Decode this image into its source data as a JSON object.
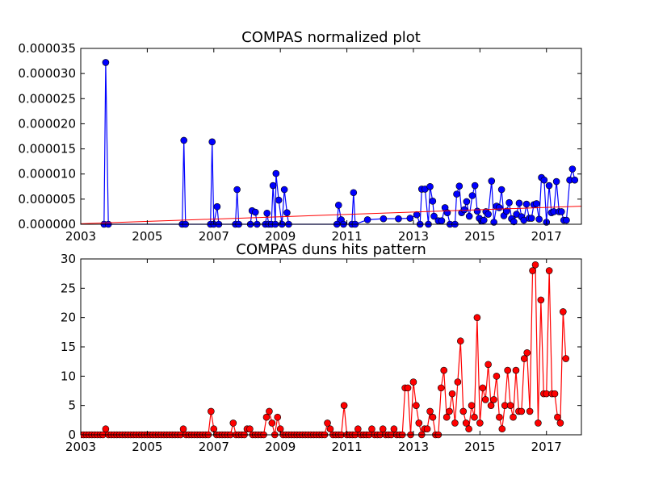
{
  "chart_data": [
    {
      "type": "line",
      "title": "COMPAS normalized plot",
      "xlabel": "",
      "ylabel": "",
      "xlim": [
        2003.0,
        2018.05
      ],
      "ylim": [
        0,
        3.5e-05
      ],
      "xticks": [
        2003,
        2005,
        2007,
        2009,
        2011,
        2013,
        2015,
        2017
      ],
      "yticks": [
        "0.000000",
        "0.000005",
        "0.000010",
        "0.000015",
        "0.000020",
        "0.000025",
        "0.000030",
        "0.000035"
      ],
      "grid": false,
      "legend": "none",
      "series": [
        {
          "color": "#0000ff",
          "marker": "circle",
          "points": [
            [
              2003.7,
              0
            ],
            [
              2003.75,
              3.22e-05
            ],
            [
              2003.83,
              0
            ],
            [
              2006.05,
              0
            ],
            [
              2006.1,
              1.67e-05
            ],
            [
              2006.15,
              0
            ],
            [
              2006.9,
              0
            ],
            [
              2006.95,
              1.64e-05
            ],
            [
              2007.0,
              0
            ],
            [
              2007.1,
              3.5e-06
            ],
            [
              2007.15,
              0
            ],
            [
              2007.65,
              0
            ],
            [
              2007.7,
              6.9e-06
            ],
            [
              2007.75,
              0
            ],
            [
              2008.1,
              0
            ],
            [
              2008.15,
              2.7e-06
            ],
            [
              2008.25,
              2.4e-06
            ],
            [
              2008.3,
              0
            ],
            [
              2008.55,
              0
            ],
            [
              2008.6,
              2.2e-06
            ],
            [
              2008.65,
              0
            ],
            [
              2008.73,
              0
            ],
            [
              2008.78,
              7.7e-06
            ],
            [
              2008.85,
              0
            ],
            [
              2008.87,
              1.01e-05
            ],
            [
              2008.95,
              4.8e-06
            ],
            [
              2009.05,
              0
            ],
            [
              2009.12,
              6.9e-06
            ],
            [
              2009.2,
              2.3e-06
            ],
            [
              2009.25,
              0
            ],
            [
              2010.7,
              0
            ],
            [
              2010.75,
              3.8e-06
            ],
            [
              2010.83,
              9e-07
            ],
            [
              2010.9,
              0
            ],
            [
              2011.15,
              0
            ],
            [
              2011.2,
              6.3e-06
            ],
            [
              2011.25,
              0
            ],
            [
              2011.62,
              9e-07
            ],
            [
              2012.1,
              1.1e-06
            ],
            [
              2012.55,
              1.1e-06
            ],
            [
              2012.9,
              1.2e-06
            ],
            [
              2013.1,
              1.9e-06
            ],
            [
              2013.2,
              0
            ],
            [
              2013.25,
              7e-06
            ],
            [
              2013.35,
              7e-06
            ],
            [
              2013.45,
              0
            ],
            [
              2013.5,
              7.5e-06
            ],
            [
              2013.58,
              4.6e-06
            ],
            [
              2013.62,
              1.6e-06
            ],
            [
              2013.75,
              7e-07
            ],
            [
              2013.85,
              7e-07
            ],
            [
              2013.95,
              3.3e-06
            ],
            [
              2014.02,
              2.3e-06
            ],
            [
              2014.1,
              0
            ],
            [
              2014.25,
              0
            ],
            [
              2014.3,
              6e-06
            ],
            [
              2014.38,
              7.6e-06
            ],
            [
              2014.45,
              2.3e-06
            ],
            [
              2014.53,
              2.9e-06
            ],
            [
              2014.6,
              4.5e-06
            ],
            [
              2014.68,
              1.6e-06
            ],
            [
              2014.77,
              5.7e-06
            ],
            [
              2014.85,
              7.7e-06
            ],
            [
              2014.92,
              2.6e-06
            ],
            [
              2014.98,
              1.2e-06
            ],
            [
              2015.05,
              6e-07
            ],
            [
              2015.12,
              8e-07
            ],
            [
              2015.18,
              2.5e-06
            ],
            [
              2015.25,
              2e-06
            ],
            [
              2015.35,
              8.6e-06
            ],
            [
              2015.42,
              4e-07
            ],
            [
              2015.5,
              3.6e-06
            ],
            [
              2015.58,
              3.3e-06
            ],
            [
              2015.65,
              6.9e-06
            ],
            [
              2015.72,
              1.7e-06
            ],
            [
              2015.8,
              2.6e-06
            ],
            [
              2015.88,
              4.3e-06
            ],
            [
              2015.95,
              1.1e-06
            ],
            [
              2016.02,
              5e-07
            ],
            [
              2016.1,
              2e-06
            ],
            [
              2016.18,
              4.2e-06
            ],
            [
              2016.25,
              1.5e-06
            ],
            [
              2016.32,
              8e-07
            ],
            [
              2016.4,
              4e-06
            ],
            [
              2016.48,
              1.2e-06
            ],
            [
              2016.55,
              1.2e-06
            ],
            [
              2016.62,
              3.9e-06
            ],
            [
              2016.7,
              4.1e-06
            ],
            [
              2016.78,
              1e-06
            ],
            [
              2016.85,
              9.3e-06
            ],
            [
              2016.93,
              8.8e-06
            ],
            [
              2017.0,
              4e-07
            ],
            [
              2017.08,
              7.7e-06
            ],
            [
              2017.15,
              2.3e-06
            ],
            [
              2017.22,
              2.5e-06
            ],
            [
              2017.3,
              8.5e-06
            ],
            [
              2017.38,
              2.5e-06
            ],
            [
              2017.45,
              2.5e-06
            ],
            [
              2017.52,
              8e-07
            ],
            [
              2017.6,
              8e-07
            ],
            [
              2017.7,
              8.8e-06
            ],
            [
              2017.78,
              1.1e-05
            ],
            [
              2017.85,
              8.8e-06
            ]
          ]
        },
        {
          "type": "trend",
          "color": "#ff0000",
          "points": [
            [
              2003.0,
              1e-07
            ],
            [
              2018.05,
              3.6e-06
            ]
          ]
        }
      ]
    },
    {
      "type": "line",
      "title": "COMPAS duns hits pattern",
      "xlabel": "",
      "ylabel": "",
      "xlim": [
        2003.0,
        2018.05
      ],
      "ylim": [
        0,
        30
      ],
      "xticks": [
        2003,
        2005,
        2007,
        2009,
        2011,
        2013,
        2015,
        2017
      ],
      "yticks": [
        0,
        5,
        10,
        15,
        20,
        25,
        30
      ],
      "grid": false,
      "legend": "none",
      "series": [
        {
          "color": "#ff0000",
          "marker": "circle",
          "x_start": 2003.0,
          "x_step": 0.08333,
          "values": [
            0,
            0,
            0,
            0,
            0,
            0,
            0,
            0,
            0,
            1,
            0,
            0,
            0,
            0,
            0,
            0,
            0,
            0,
            0,
            0,
            0,
            0,
            0,
            0,
            0,
            0,
            0,
            0,
            0,
            0,
            0,
            0,
            0,
            0,
            0,
            0,
            0,
            1,
            0,
            0,
            0,
            0,
            0,
            0,
            0,
            0,
            0,
            4,
            1,
            0,
            0,
            0,
            0,
            0,
            0,
            2,
            0,
            0,
            0,
            0,
            1,
            1,
            0,
            0,
            0,
            0,
            0,
            3,
            4,
            2,
            0,
            3,
            1,
            0,
            0,
            0,
            0,
            0,
            0,
            0,
            0,
            0,
            0,
            0,
            0,
            0,
            0,
            0,
            0,
            2,
            1,
            0,
            0,
            0,
            0,
            5,
            0,
            0,
            0,
            0,
            1,
            0,
            0,
            0,
            0,
            1,
            0,
            0,
            0,
            1,
            0,
            0,
            0,
            1,
            0,
            0,
            0,
            8,
            8,
            0,
            9,
            5,
            2,
            0,
            1,
            1,
            4,
            3,
            0,
            0,
            8,
            11,
            3,
            4,
            7,
            2,
            9,
            16,
            4,
            2,
            1,
            5,
            3,
            20,
            2,
            8,
            6,
            12,
            5,
            6,
            10,
            3,
            1,
            5,
            11,
            5,
            3,
            11,
            4,
            4,
            13,
            14,
            4,
            28,
            29,
            2,
            23,
            7,
            7,
            28,
            7,
            7,
            3,
            2,
            21,
            13
          ]
        }
      ]
    }
  ]
}
